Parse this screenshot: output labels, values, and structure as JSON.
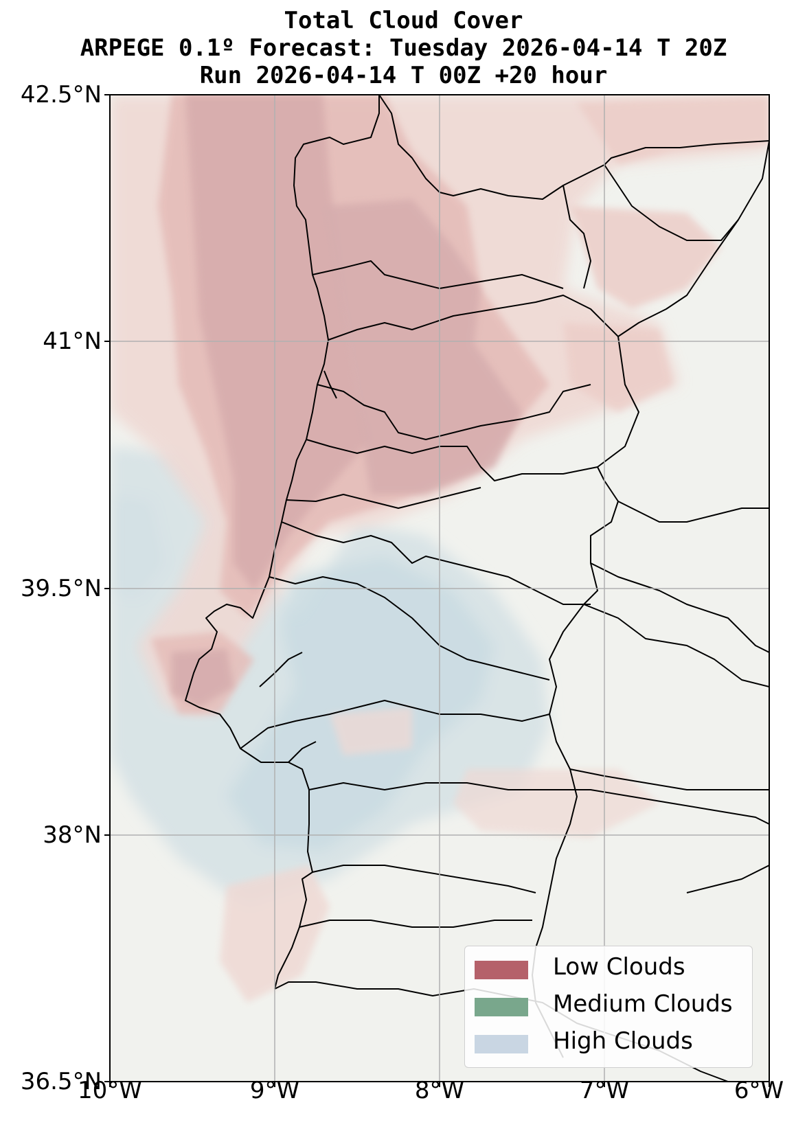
{
  "title": {
    "line1": "Total Cloud Cover",
    "line2": "ARPEGE 0.1º Forecast: Tuesday 2026-04-14 T 20Z",
    "line3": "Run 2026-04-14 T 00Z +20 hour"
  },
  "axes": {
    "lat_labels": [
      "42.5°N",
      "41°N",
      "39.5°N",
      "38°N",
      "36.5°N"
    ],
    "lon_labels": [
      "10°W",
      "9°W",
      "8°W",
      "7°W",
      "6°W"
    ],
    "lat_range": [
      36.5,
      42.5
    ],
    "lon_range": [
      -10,
      -6
    ],
    "grid": true
  },
  "legend": {
    "position": "lower-right",
    "items": [
      {
        "label": "Low Clouds",
        "color": "#b5616a"
      },
      {
        "label": "Medium Clouds",
        "color": "#79a78c"
      },
      {
        "label": "High Clouds",
        "color": "#c9d6e3"
      }
    ]
  },
  "colors": {
    "background": "#f1f2ee",
    "low_cloud": "#b5616a",
    "high_cloud": "#c9d6e3",
    "border": "#000000",
    "grid": "#b0b0b0"
  }
}
